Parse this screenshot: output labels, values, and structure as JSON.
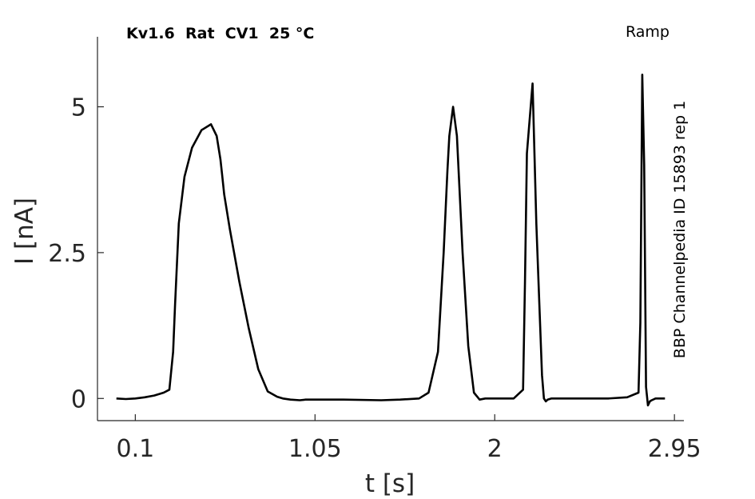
{
  "chart_data": {
    "type": "line",
    "title": "Kv1.6  Rat  CV1  25 °C",
    "protocol_label": "Ramp",
    "side_label": "BBP Channelpedia ID 15893 rep 1",
    "xlabel": "t [s]",
    "ylabel": "I [nA]",
    "xlim": [
      -0.1,
      3.0
    ],
    "ylim": [
      -0.38,
      6.2
    ],
    "xticks": [
      0.1,
      1.05,
      2,
      2.95
    ],
    "xtick_labels": [
      "0.1",
      "1.05",
      "2",
      "2.95"
    ],
    "yticks": [
      0,
      2.5,
      5
    ],
    "ytick_labels": [
      "0",
      "2.5",
      "5"
    ],
    "grid": false,
    "line_color": "#000000",
    "series": [
      {
        "x": [
          0.0,
          0.05,
          0.1,
          0.15,
          0.2,
          0.25,
          0.28,
          0.3,
          0.31,
          0.33,
          0.36,
          0.4,
          0.45,
          0.5,
          0.53,
          0.55,
          0.56,
          0.57,
          0.6,
          0.65,
          0.7,
          0.75,
          0.8,
          0.85,
          0.88,
          0.92,
          0.97,
          1.0,
          1.2,
          1.4,
          1.5,
          1.6,
          1.65,
          1.7,
          1.73,
          1.75,
          1.76,
          1.78,
          1.8,
          1.83,
          1.86,
          1.89,
          1.92,
          1.95,
          2.0,
          2.1,
          2.15,
          2.16,
          2.17,
          2.2,
          2.22,
          2.25,
          2.26,
          2.27,
          2.28,
          2.3,
          2.45,
          2.6,
          2.7,
          2.76,
          2.77,
          2.78,
          2.79,
          2.8,
          2.81,
          2.82,
          2.83,
          2.85,
          2.9
        ],
        "y": [
          0.0,
          -0.01,
          0.0,
          0.02,
          0.05,
          0.1,
          0.15,
          0.8,
          1.6,
          3.0,
          3.8,
          4.3,
          4.6,
          4.7,
          4.5,
          4.1,
          3.8,
          3.5,
          2.9,
          2.0,
          1.2,
          0.5,
          0.12,
          0.03,
          0.0,
          -0.02,
          -0.03,
          -0.02,
          -0.02,
          -0.03,
          -0.02,
          0.0,
          0.1,
          0.8,
          2.5,
          3.9,
          4.5,
          5.0,
          4.5,
          2.5,
          0.9,
          0.1,
          -0.02,
          0.0,
          0.0,
          0.0,
          0.15,
          2.0,
          4.2,
          5.4,
          3.0,
          0.4,
          0.0,
          -0.05,
          -0.02,
          0.0,
          0.0,
          0.0,
          0.02,
          0.1,
          1.3,
          5.55,
          4.0,
          0.2,
          -0.12,
          -0.05,
          -0.03,
          0.0,
          0.0
        ]
      }
    ]
  }
}
